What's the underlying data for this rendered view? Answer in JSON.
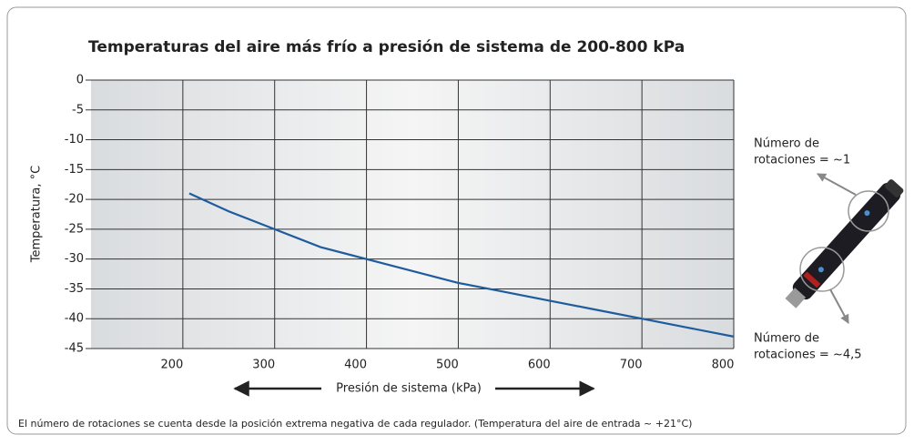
{
  "chart_data": {
    "type": "line",
    "title": "Temperaturas del aire más frío a presión de sistema de 200-800 kPa",
    "xlabel": "Presión de sistema (kPa)",
    "ylabel": "Temperatura, °C",
    "x": [
      207,
      250,
      300,
      350,
      400,
      450,
      500,
      550,
      600,
      650,
      700,
      750,
      800
    ],
    "series": [
      {
        "color": "#1f5c9e",
        "values": [
          -19,
          -22,
          -25,
          -28,
          -30,
          -32,
          -34,
          -35.5,
          -37,
          -38.5,
          -40,
          -41.5,
          -43
        ]
      }
    ],
    "xlim": [
      100,
      800
    ],
    "ylim": [
      -45,
      0
    ],
    "xticks": [
      200,
      300,
      400,
      500,
      600,
      700,
      800
    ],
    "yticks": [
      0,
      -5,
      -10,
      -15,
      -20,
      -25,
      -30,
      -35,
      -40,
      -45
    ],
    "grid": true,
    "annotations": [
      {
        "lines": [
          "Número de",
          "rotaciones = ~1"
        ]
      },
      {
        "lines": [
          "Número de",
          "rotaciones = ~4,5"
        ]
      }
    ],
    "footnote": "El número de rotaciones se cuenta desde la posición extrema negativa de cada regulador. (Temperatura del aire de entrada ~ +21°C)"
  }
}
